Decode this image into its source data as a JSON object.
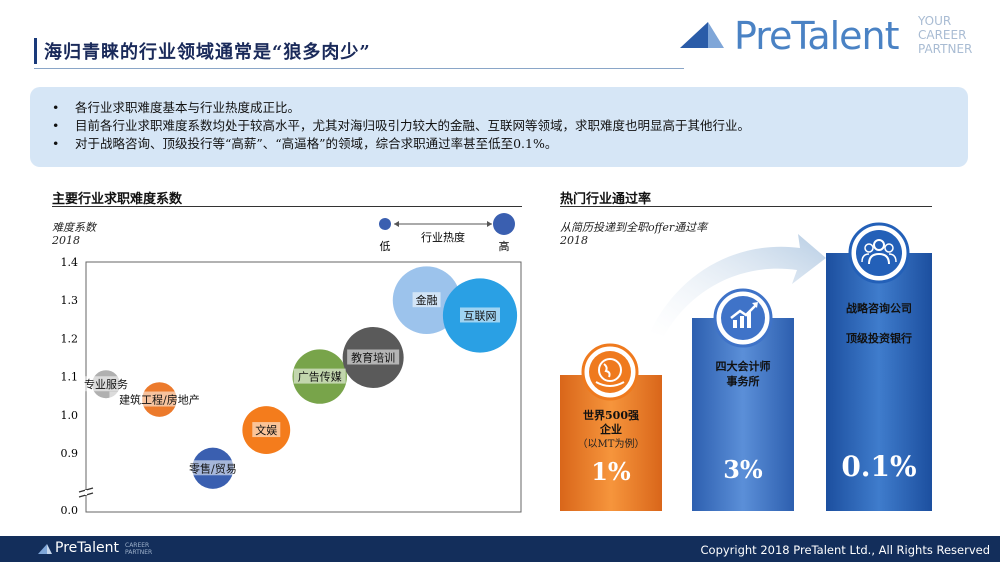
{
  "header": {
    "title": "海归青睐的行业领域通常是“狼多肉少”",
    "brand": "PreTalent",
    "tagline": [
      "YOUR",
      "CAREER",
      "PARTNER"
    ]
  },
  "summary": [
    "各行业求职难度基本与行业热度成正比。",
    "目前各行业求职难度系数均处于较高水平，尤其对海归吸引力较大的金融、互联网等领域，求职难度也明显高于其他行业。",
    "对于战略咨询、顶级投行等“高薪”、“高逼格”的领域，综合求职通过率甚至低至0.1%。"
  ],
  "left_section": {
    "title": "主要行业求职难度系数",
    "ylabel": "难度系数",
    "year": "2018",
    "legend": {
      "low": "低",
      "label": "行业热度",
      "high": "高"
    }
  },
  "right_section": {
    "title": "热门行业通过率",
    "subtitle": "从简历投递到全职offer通过率",
    "year": "2018"
  },
  "chart_data": [
    {
      "type": "scatter",
      "ylabel": "难度系数",
      "yticks": [
        "1.4",
        "1.3",
        "1.2",
        "1.1",
        "1.0",
        "0.9",
        "0.0"
      ],
      "axis_break": true,
      "points": [
        {
          "label": "专业服务",
          "y": 1.08,
          "heat": 1,
          "color": "#b0b0b0"
        },
        {
          "label": "建筑工程/房地产",
          "y": 1.04,
          "heat": 2,
          "color": "#ec7a2c"
        },
        {
          "label": "零售/贸易",
          "y": 0.86,
          "heat": 3,
          "color": "#3a5fb0"
        },
        {
          "label": "文娱",
          "y": 0.96,
          "heat": 4,
          "color": "#f47c1c"
        },
        {
          "label": "广告传媒",
          "y": 1.1,
          "heat": 5,
          "color": "#78a44a"
        },
        {
          "label": "教育培训",
          "y": 1.15,
          "heat": 6,
          "color": "#5a5a5a"
        },
        {
          "label": "金融",
          "y": 1.3,
          "heat": 7,
          "color": "#9cc3ec"
        },
        {
          "label": "互联网",
          "y": 1.26,
          "heat": 8,
          "color": "#2aa0e4"
        }
      ]
    },
    {
      "type": "bar",
      "categories": [
        "世界500强企业（以MT为例）",
        "四大会计师事务所",
        "战略咨询公司 / 顶级投资银行"
      ],
      "values": [
        1,
        3,
        0.1
      ],
      "unit": "%",
      "labels": [
        "1%",
        "3%",
        "0.1%"
      ]
    }
  ],
  "bars": [
    {
      "lines": [
        "世界500强",
        "企业"
      ],
      "sub": "（以MT为例）",
      "value": "1%",
      "color": "#ef7a1e"
    },
    {
      "lines": [
        "四大会计师",
        "事务所"
      ],
      "sub": "",
      "value": "3%",
      "color": "#3f73c8"
    },
    {
      "lines": [
        "战略咨询公司",
        "顶级投资银行"
      ],
      "sub": "",
      "value": "0.1%",
      "color": "#2360b8"
    }
  ],
  "footer": {
    "brand": "PreTalent",
    "tagline": [
      "CAREER",
      "PARTNER"
    ],
    "copyright": "Copyright 2018 PreTalent Ltd., All Rights Reserved"
  }
}
